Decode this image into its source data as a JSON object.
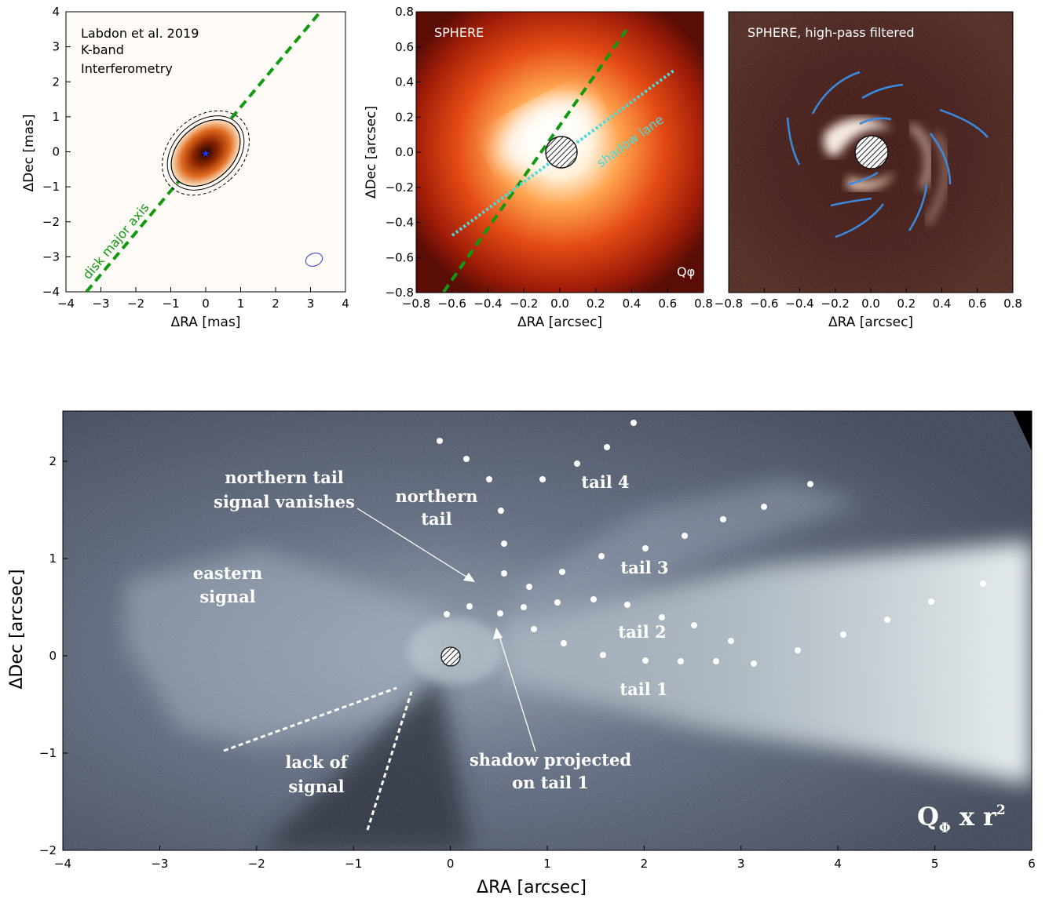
{
  "panels": {
    "p1": {
      "text_lines": [
        "Labdon et al. 2019",
        "K-band",
        "Interferometry"
      ],
      "axis_label": "disk major axis",
      "xlabel": "ΔRA  [mas]",
      "ylabel": "ΔDec [mas]",
      "xticks": [
        "−4",
        "−3",
        "−2",
        "−1",
        "0",
        "1",
        "2",
        "3",
        "4"
      ],
      "yticks": [
        "4",
        "3",
        "2",
        "1",
        "0",
        "−1",
        "−2",
        "−3",
        "−4"
      ]
    },
    "p2": {
      "title": "SPHERE",
      "shadow_label": "shadow lane",
      "corner_label": "Qφ",
      "xlabel": "ΔRA  [arcsec]",
      "ylabel": "ΔDec [arcsec]",
      "xticks": [
        "−0.8",
        "−0.6",
        "−0.4",
        "−0.2",
        "0.0",
        "0.2",
        "0.4",
        "0.6",
        "0.8"
      ],
      "yticks": [
        "0.8",
        "0.6",
        "0.4",
        "0.2",
        "0.0",
        "−0.2",
        "−0.4",
        "−0.6",
        "−0.8"
      ]
    },
    "p3": {
      "title": "SPHERE, high-pass filtered",
      "xlabel": "ΔRA  [arcsec]",
      "xticks": [
        "−0.8",
        "−0.6",
        "−0.4",
        "−0.2",
        "0.0",
        "0.2",
        "0.4",
        "0.6",
        "0.8"
      ]
    },
    "p4": {
      "xlabel": "ΔRA  [arcsec]",
      "ylabel": "ΔDec [arcsec]",
      "xticks": [
        "−4",
        "−3",
        "−2",
        "−1",
        "0",
        "1",
        "2",
        "3",
        "4",
        "5",
        "6"
      ],
      "yticks": [
        "2",
        "1",
        "0",
        "−1",
        "−2"
      ],
      "annotations": {
        "north_vanish_1": "northern tail",
        "north_vanish_2": "signal vanishes",
        "north_tail_1": "northern",
        "north_tail_2": "tail",
        "eastern_1": "eastern",
        "eastern_2": "signal",
        "tail4": "tail 4",
        "tail3": "tail 3",
        "tail2": "tail 2",
        "tail1": "tail 1",
        "lack_1": "lack of",
        "lack_2": "signal",
        "shadow_1": "shadow projected",
        "shadow_2": "on tail 1",
        "qphi": "Q",
        "qphi_sub": "Φ",
        "qphi_rest": " x r",
        "qphi_sup": "2"
      }
    }
  },
  "colors": {
    "green_axis": "#119911",
    "cyan_lane": "#44dddd",
    "blue_arcs": "#3a8ae0",
    "bottom_bg": "#3a4254"
  }
}
